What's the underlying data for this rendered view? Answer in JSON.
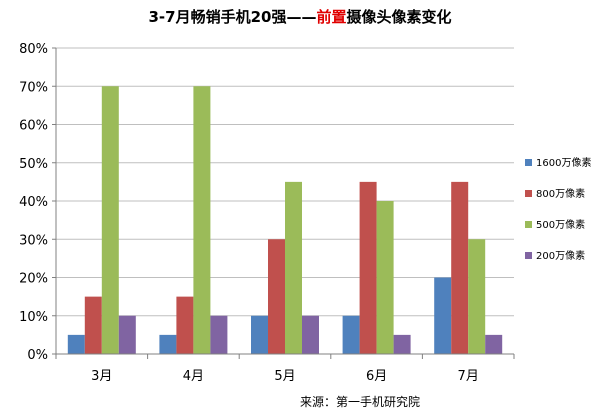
{
  "title": {
    "prefix": "3-7月畅销手机20强——",
    "highlight": "前置",
    "suffix": "摄像头像素变化"
  },
  "source_note": "来源：第一手机研究院",
  "colors": {
    "highlight": "#e00000",
    "grid": "#bfbfbf",
    "axis": "#808080",
    "text": "#000000"
  },
  "chart_data": {
    "type": "bar",
    "title": "3-7月畅销手机20强——前置摄像头像素变化",
    "categories": [
      "3月",
      "4月",
      "5月",
      "6月",
      "7月"
    ],
    "series": [
      {
        "name": "1600万像素",
        "color": "#4f81bd",
        "values": [
          5,
          5,
          10,
          10,
          20
        ]
      },
      {
        "name": "800万像素",
        "color": "#c0504d",
        "values": [
          15,
          15,
          30,
          45,
          45
        ]
      },
      {
        "name": "500万像素",
        "color": "#9bbb59",
        "values": [
          70,
          70,
          45,
          40,
          30
        ]
      },
      {
        "name": "200万像素",
        "color": "#8064a2",
        "values": [
          10,
          10,
          10,
          5,
          5
        ]
      }
    ],
    "yticks": [
      "0%",
      "10%",
      "20%",
      "30%",
      "40%",
      "50%",
      "60%",
      "70%",
      "80%"
    ],
    "ylim": [
      0,
      80
    ],
    "ytick_step": 10,
    "grid": true,
    "legend_position": "right"
  }
}
